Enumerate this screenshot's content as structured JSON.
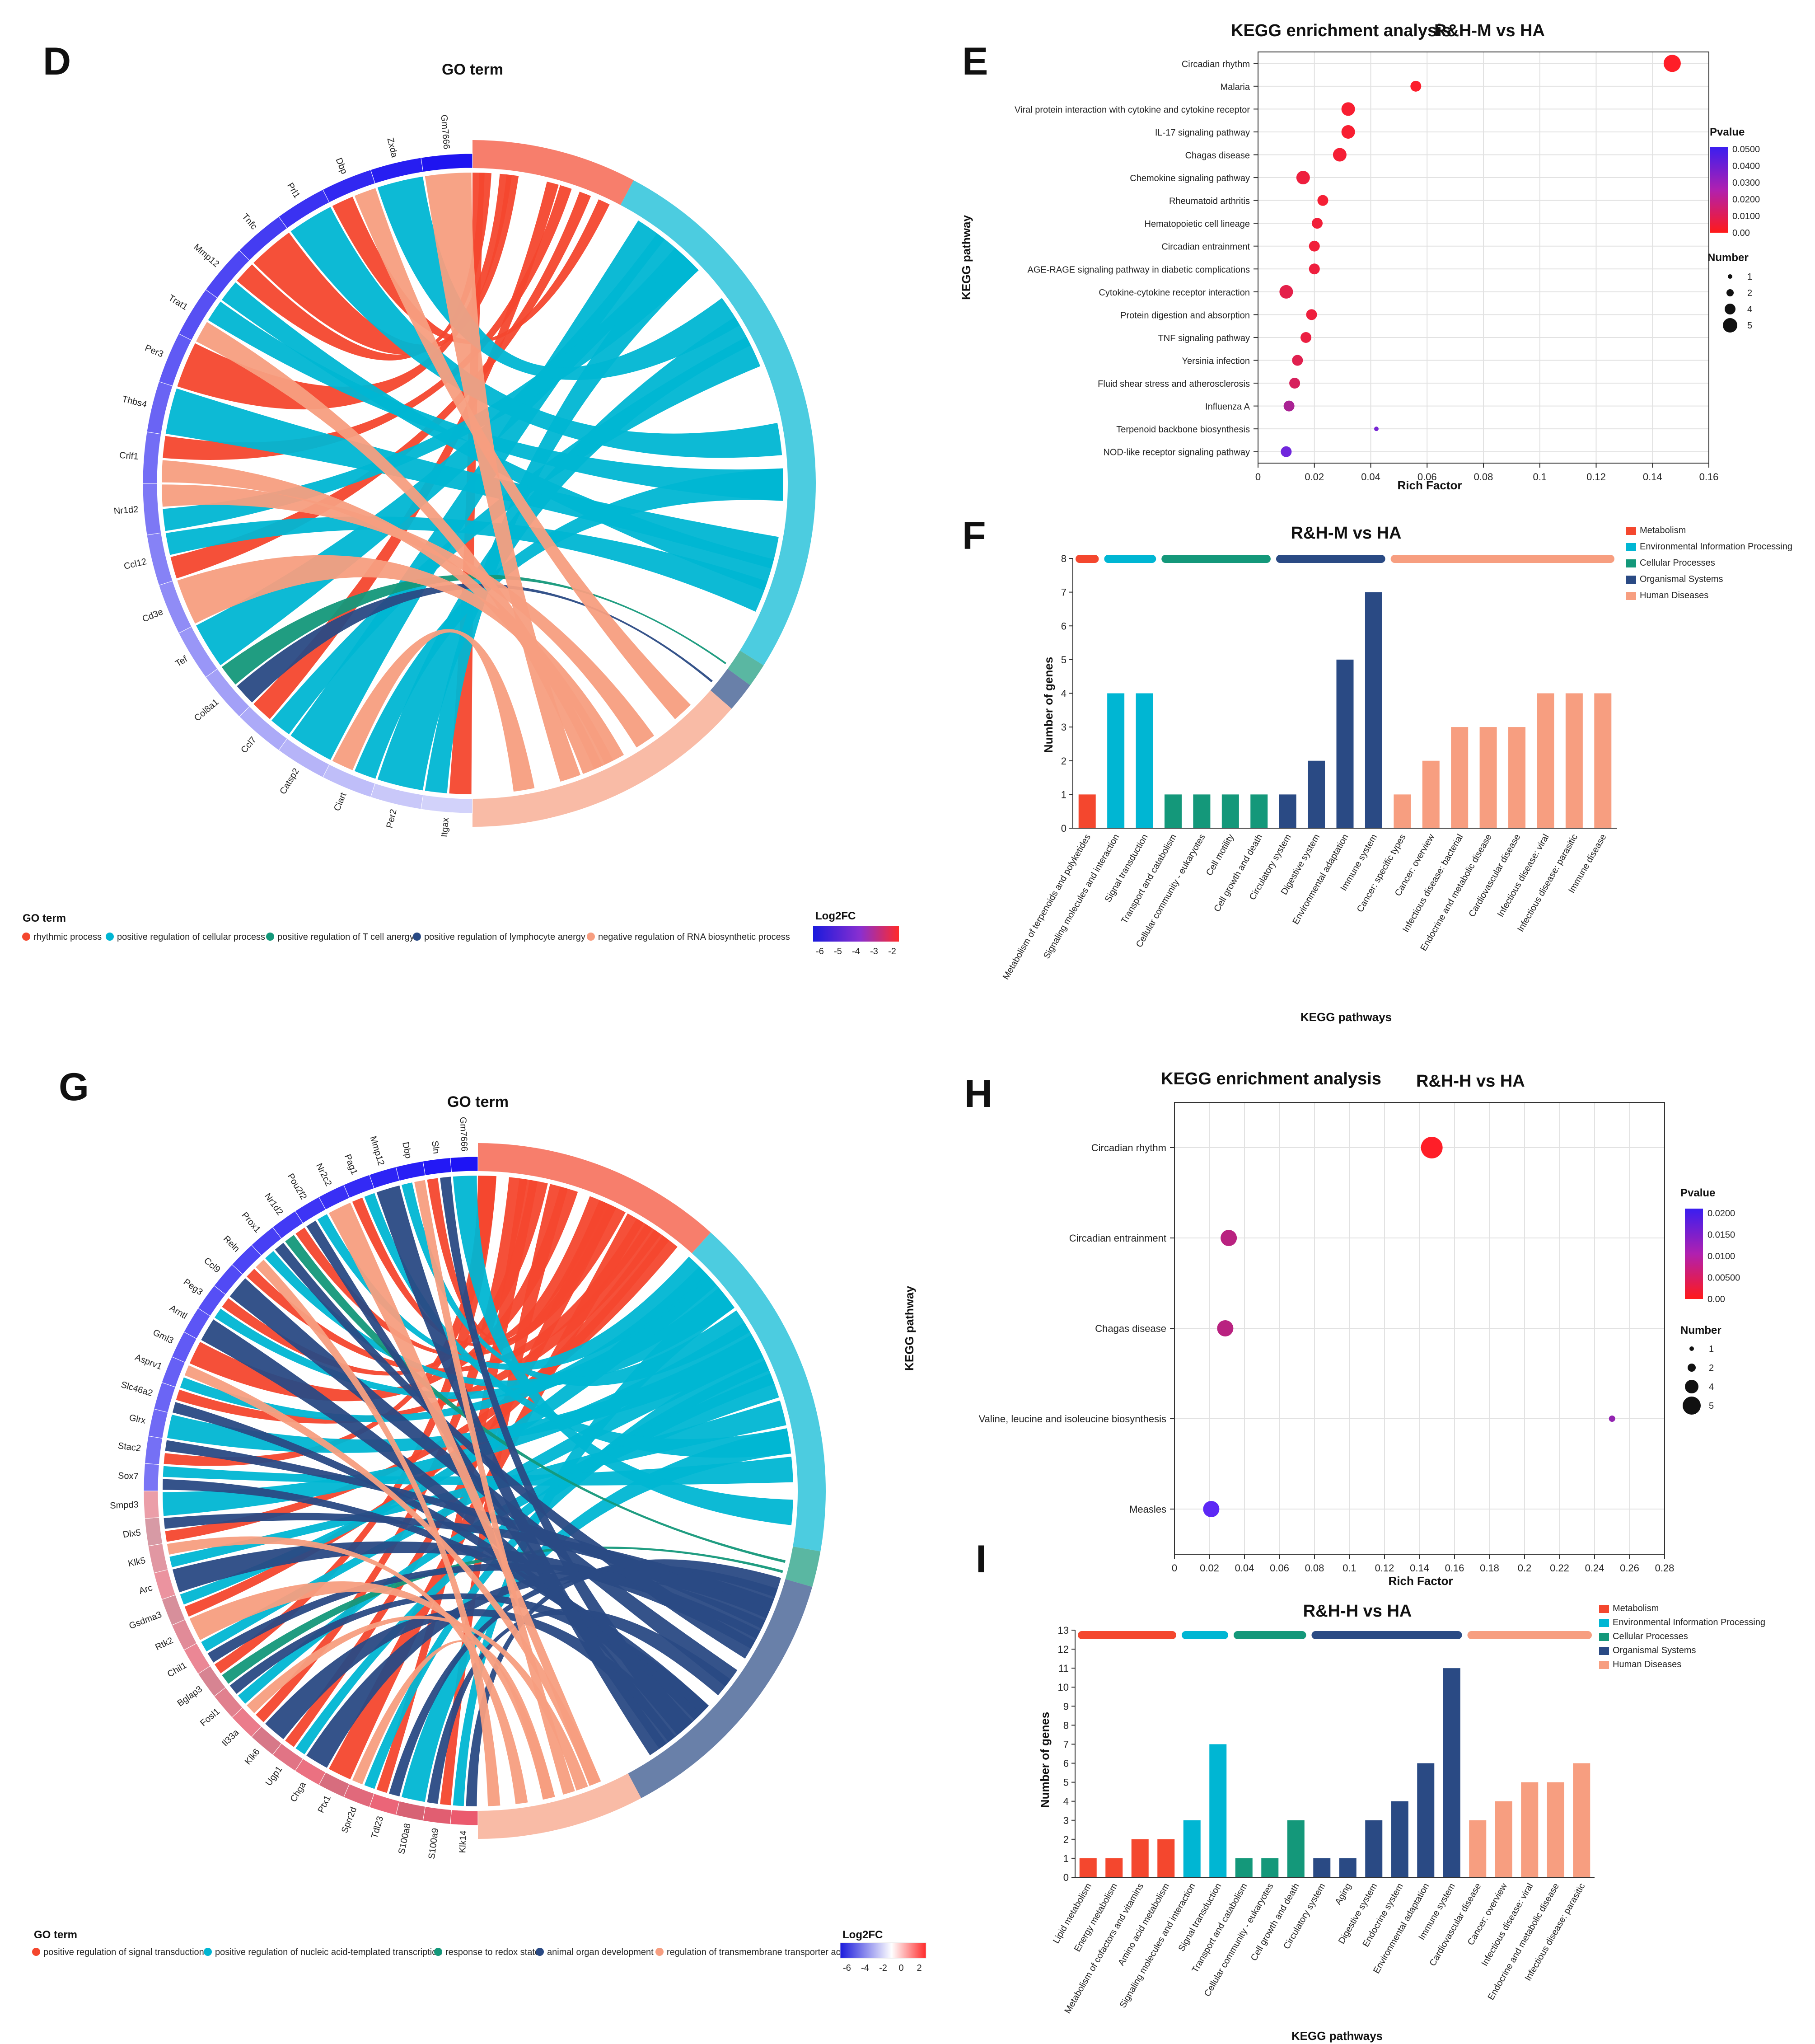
{
  "colors": {
    "red": "#f4472e",
    "cyan": "#00b6d3",
    "teal": "#14987a",
    "navy": "#2a4a84",
    "salmon": "#f79e80"
  },
  "panels": {
    "D": "D",
    "E": "E",
    "F": "F",
    "G": "G",
    "H": "H",
    "I": "I"
  },
  "chart_data": [
    {
      "panel": "D",
      "type": "chord",
      "title": "GO term",
      "genes": [
        "Itgax",
        "Per2",
        "Ciart",
        "Catsp2",
        "Ccl7",
        "Col8a1",
        "Tef",
        "Cd3e",
        "Ccl12",
        "Nr1d2",
        "Crlf1",
        "Thbs4",
        "Per3",
        "Trat1",
        "Mmp12",
        "Tnfc",
        "Prl1",
        "Dbp",
        "Zxda",
        "Gm7666"
      ],
      "legend_title": "GO term",
      "legend": [
        "rhythmic process",
        "positive regulation of cellular process",
        "positive regulation of T cell anergy",
        "positive regulation of lymphocyte anergy",
        "negative regulation of RNA biosynthetic process"
      ],
      "colorbar_title": "Log2FC",
      "colorbar_ticks": [
        "-6",
        "-5",
        "-4",
        "-3",
        "-2"
      ]
    },
    {
      "panel": "E",
      "type": "scatter",
      "title": "KEGG enrichment analysis",
      "subtitle": "R&H-M vs HA",
      "xlabel": "Rich Factor",
      "ylabel": "KEGG pathway",
      "xlim": [
        0,
        0.16
      ],
      "xticks": [
        "0",
        "0.02",
        "0.04",
        "0.06",
        "0.08",
        "0.1",
        "0.12",
        "0.14",
        "0.16"
      ],
      "categories": [
        "Circadian rhythm",
        "Malaria",
        "Viral protein interaction with cytokine and cytokine receptor",
        "IL-17 signaling pathway",
        "Chagas disease",
        "Chemokine signaling pathway",
        "Rheumatoid arthritis",
        "Hematopoietic cell lineage",
        "Circadian entrainment",
        "AGE-RAGE signaling pathway in diabetic complications",
        "Cytokine-cytokine receptor interaction",
        "Protein digestion and absorption",
        "TNF signaling pathway",
        "Yersinia infection",
        "Fluid shear stress and atherosclerosis",
        "Influenza A",
        "Terpenoid backbone biosynthesis",
        "NOD-like receptor signaling pathway"
      ],
      "x": [
        0.147,
        0.056,
        0.032,
        0.032,
        0.029,
        0.016,
        0.023,
        0.021,
        0.02,
        0.02,
        0.01,
        0.019,
        0.017,
        0.014,
        0.013,
        0.011,
        0.042,
        0.01
      ],
      "pvalue": [
        0.0,
        0.001,
        0.002,
        0.002,
        0.003,
        0.005,
        0.003,
        0.004,
        0.004,
        0.005,
        0.008,
        0.005,
        0.006,
        0.009,
        0.012,
        0.025,
        0.04,
        0.042
      ],
      "number": [
        4,
        2,
        3,
        3,
        3,
        3,
        2,
        2,
        2,
        2,
        3,
        2,
        2,
        2,
        2,
        2,
        1,
        2
      ],
      "pvalue_title": "Pvalue",
      "pvalue_ticks": [
        "0.0500",
        "0.0400",
        "0.0300",
        "0.0200",
        "0.0100",
        "0.00"
      ],
      "number_title": "Number",
      "number_ticks": [
        "1",
        "2",
        "4",
        "5"
      ]
    },
    {
      "panel": "F",
      "type": "bar",
      "title": "R&H-M vs HA",
      "xlabel": "KEGG pathways",
      "ylabel": "Number of genes",
      "ylim": [
        0,
        8
      ],
      "yticks": [
        "0",
        "1",
        "2",
        "3",
        "4",
        "5",
        "6",
        "7",
        "8"
      ],
      "categories": [
        "Metabolism of terpenoids and polyketides",
        "Signaling molecules and interaction",
        "Signal transduction",
        "Transport and catabolism",
        "Cellular community - eukaryotes",
        "Cell motility",
        "Cell growth and death",
        "Circulatory system",
        "Digestive system",
        "Environmental adaptation",
        "Immune system",
        "Cancer: specific types",
        "Cancer: overview",
        "Infectious disease: bacterial",
        "Endocrine and metabolic disease",
        "Cardiovascular disease",
        "Infectious disease: viral",
        "Infectious disease: parasitic",
        "Immune disease"
      ],
      "values": [
        1,
        4,
        4,
        1,
        1,
        1,
        1,
        1,
        2,
        5,
        7,
        1,
        2,
        3,
        3,
        3,
        4,
        4,
        4
      ],
      "groups": [
        "Metabolism",
        "Environmental Information Processing",
        "Environmental Information Processing",
        "Cellular Processes",
        "Cellular Processes",
        "Cellular Processes",
        "Cellular Processes",
        "Organismal Systems",
        "Organismal Systems",
        "Organismal Systems",
        "Organismal Systems",
        "Human Diseases",
        "Human Diseases",
        "Human Diseases",
        "Human Diseases",
        "Human Diseases",
        "Human Diseases",
        "Human Diseases",
        "Human Diseases"
      ],
      "legend": [
        "Metabolism",
        "Environmental Information Processing",
        "Cellular Processes",
        "Organismal Systems",
        "Human Diseases"
      ]
    },
    {
      "panel": "G",
      "type": "chord",
      "title": "GO term",
      "genes": [
        "Klk14",
        "S100a9",
        "S100a8",
        "Tdl23",
        "Sprr2d",
        "Ptx1",
        "Chga",
        "Ugp1",
        "Klk6",
        "Il33a",
        "Fosl1",
        "Bglap3",
        "Chil1",
        "Rtk2",
        "Gsdma3",
        "Arc",
        "Klk5",
        "Dlx5",
        "Smpd3",
        "Sox7",
        "Stac2",
        "Glrx",
        "Slc46a2",
        "Asprv1",
        "Gml3",
        "Arntl",
        "Peg3",
        "Ccl9",
        "Reln",
        "Prox1",
        "Nr1d2",
        "Pou2f2",
        "Nr2c2",
        "Pag1",
        "Mmp12",
        "Dbp",
        "Sln",
        "Gm7666"
      ],
      "legend_title": "GO term",
      "legend": [
        "positive regulation of signal transduction",
        "positive regulation of nucleic acid-templated transcription",
        "response to redox state",
        "animal organ development",
        "regulation of transmembrane transporter activity"
      ],
      "colorbar_title": "Log2FC",
      "colorbar_ticks": [
        "-6",
        "-4",
        "-2",
        "0",
        "2"
      ]
    },
    {
      "panel": "H",
      "type": "scatter",
      "title": "KEGG enrichment analysis",
      "subtitle": "R&H-H vs HA",
      "xlabel": "Rich Factor",
      "ylabel": "KEGG pathway",
      "xlim": [
        0,
        0.28
      ],
      "xticks": [
        "0",
        "0.02",
        "0.04",
        "0.06",
        "0.08",
        "0.1",
        "0.12",
        "0.14",
        "0.16",
        "0.18",
        "0.2",
        "0.22",
        "0.24",
        "0.26",
        "0.28"
      ],
      "categories": [
        "Circadian rhythm",
        "Circadian entrainment",
        "Chagas disease",
        "Valine, leucine and isoleucine biosynthesis",
        "Measles"
      ],
      "x": [
        0.147,
        0.031,
        0.029,
        0.25,
        0.021
      ],
      "pvalue": [
        0.0,
        0.009,
        0.009,
        0.014,
        0.021
      ],
      "number": [
        5,
        3,
        3,
        1,
        3
      ],
      "pvalue_title": "Pvalue",
      "pvalue_ticks": [
        "0.0200",
        "0.0150",
        "0.0100",
        "0.00500",
        "0.00"
      ],
      "number_title": "Number",
      "number_ticks": [
        "1",
        "2",
        "4",
        "5"
      ]
    },
    {
      "panel": "I",
      "type": "bar",
      "title": "R&H-H vs HA",
      "xlabel": "KEGG pathways",
      "ylabel": "Number of genes",
      "ylim": [
        0,
        13
      ],
      "yticks": [
        "0",
        "1",
        "2",
        "3",
        "4",
        "5",
        "6",
        "7",
        "8",
        "9",
        "10",
        "11",
        "12",
        "13"
      ],
      "categories": [
        "Lipid metabolism",
        "Energy metabolism",
        "Metabolism of cofactors and vitamins",
        "Amino acid metabolism",
        "Signaling molecules and interaction",
        "Signal transduction",
        "Transport and catabolism",
        "Cellular community - eukaryotes",
        "Cell growth and death",
        "Circulatory system",
        "Aging",
        "Digestive system",
        "Endocrine system",
        "Environmental adaptation",
        "Immune system",
        "Cardiovascular disease",
        "Cancer: overview",
        "Infectious disease: viral",
        "Endocrine and metabolic disease",
        "Infectious disease: parasitic"
      ],
      "values": [
        1,
        1,
        2,
        2,
        3,
        7,
        1,
        1,
        3,
        1,
        1,
        3,
        4,
        6,
        11,
        3,
        4,
        5,
        5,
        6
      ],
      "groups": [
        "Metabolism",
        "Metabolism",
        "Metabolism",
        "Metabolism",
        "Environmental Information Processing",
        "Environmental Information Processing",
        "Cellular Processes",
        "Cellular Processes",
        "Cellular Processes",
        "Organismal Systems",
        "Organismal Systems",
        "Organismal Systems",
        "Organismal Systems",
        "Organismal Systems",
        "Organismal Systems",
        "Human Diseases",
        "Human Diseases",
        "Human Diseases",
        "Human Diseases",
        "Human Diseases"
      ],
      "legend": [
        "Metabolism",
        "Environmental Information Processing",
        "Cellular Processes",
        "Organismal Systems",
        "Human Diseases"
      ]
    }
  ]
}
